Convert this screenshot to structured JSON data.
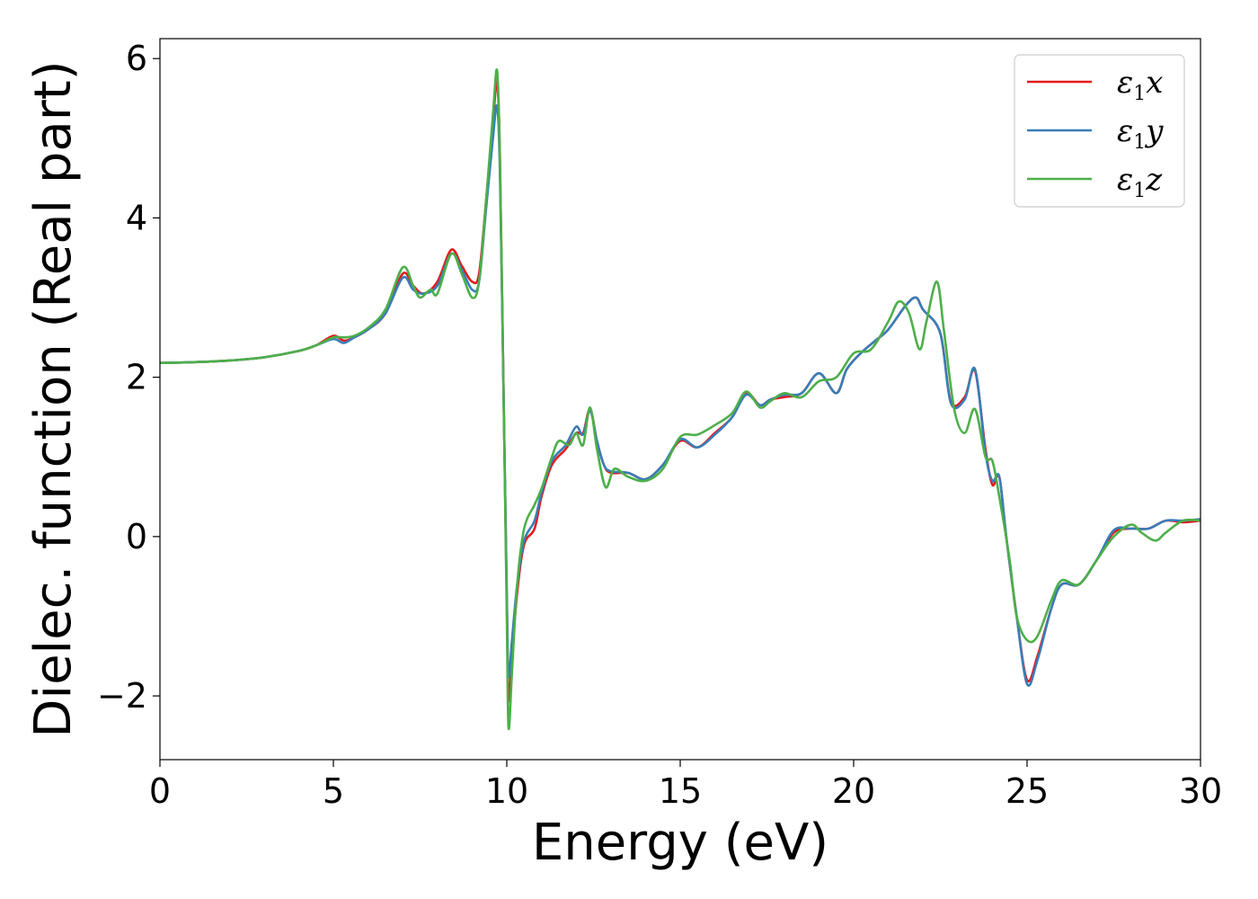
{
  "chart_data": {
    "type": "line",
    "title": "",
    "xlabel": "Energy (eV)",
    "ylabel": "Dielec. function (Real part)",
    "xlim": [
      0,
      30
    ],
    "ylim": [
      -2.8,
      6.25
    ],
    "xticks": [
      0,
      5,
      10,
      15,
      20,
      25,
      30
    ],
    "xtick_labels": [
      "0",
      "5",
      "10",
      "15",
      "20",
      "25",
      "30"
    ],
    "yticks": [
      -2,
      0,
      2,
      4,
      6
    ],
    "ytick_labels": [
      "−2",
      "0",
      "2",
      "4",
      "6"
    ],
    "grid": false,
    "legend_position": "top-right",
    "series": [
      {
        "name": "ε1x",
        "symbol": "ε",
        "subscript": "1",
        "axis": "x",
        "color": "#e41a1c",
        "points": [
          [
            0,
            2.18
          ],
          [
            1,
            2.19
          ],
          [
            2,
            2.21
          ],
          [
            3,
            2.25
          ],
          [
            4,
            2.33
          ],
          [
            4.5,
            2.4
          ],
          [
            5,
            2.52
          ],
          [
            5.3,
            2.46
          ],
          [
            5.6,
            2.5
          ],
          [
            6,
            2.6
          ],
          [
            6.5,
            2.8
          ],
          [
            7,
            3.3
          ],
          [
            7.3,
            3.15
          ],
          [
            7.6,
            3.05
          ],
          [
            8,
            3.2
          ],
          [
            8.4,
            3.6
          ],
          [
            8.7,
            3.4
          ],
          [
            9,
            3.2
          ],
          [
            9.2,
            3.3
          ],
          [
            9.4,
            4.2
          ],
          [
            9.6,
            5.2
          ],
          [
            9.72,
            5.7
          ],
          [
            9.8,
            4.8
          ],
          [
            9.9,
            2.0
          ],
          [
            10.0,
            -0.8
          ],
          [
            10.05,
            -2.05
          ],
          [
            10.15,
            -1.5
          ],
          [
            10.3,
            -0.7
          ],
          [
            10.5,
            -0.1
          ],
          [
            10.8,
            0.1
          ],
          [
            11,
            0.5
          ],
          [
            11.3,
            0.9
          ],
          [
            11.7,
            1.1
          ],
          [
            12,
            1.3
          ],
          [
            12.2,
            1.3
          ],
          [
            12.4,
            1.6
          ],
          [
            12.6,
            1.2
          ],
          [
            12.8,
            0.9
          ],
          [
            13,
            0.8
          ],
          [
            13.5,
            0.8
          ],
          [
            14,
            0.72
          ],
          [
            14.5,
            0.9
          ],
          [
            15,
            1.2
          ],
          [
            15.5,
            1.12
          ],
          [
            16,
            1.3
          ],
          [
            16.5,
            1.5
          ],
          [
            16.9,
            1.8
          ],
          [
            17.3,
            1.65
          ],
          [
            17.6,
            1.72
          ],
          [
            18,
            1.75
          ],
          [
            18.5,
            1.8
          ],
          [
            19,
            2.05
          ],
          [
            19.5,
            1.8
          ],
          [
            19.8,
            2.1
          ],
          [
            20.2,
            2.3
          ],
          [
            20.6,
            2.45
          ],
          [
            21,
            2.6
          ],
          [
            21.5,
            2.9
          ],
          [
            21.8,
            3.0
          ],
          [
            22,
            2.85
          ],
          [
            22.5,
            2.55
          ],
          [
            22.8,
            1.7
          ],
          [
            23.2,
            1.75
          ],
          [
            23.5,
            2.08
          ],
          [
            23.8,
            1.1
          ],
          [
            24,
            0.65
          ],
          [
            24.2,
            0.75
          ],
          [
            24.4,
            0.0
          ],
          [
            24.7,
            -1.0
          ],
          [
            25.0,
            -1.8
          ],
          [
            25.3,
            -1.5
          ],
          [
            25.7,
            -0.9
          ],
          [
            26,
            -0.6
          ],
          [
            26.5,
            -0.6
          ],
          [
            27,
            -0.3
          ],
          [
            27.5,
            0.05
          ],
          [
            28,
            0.1
          ],
          [
            28.5,
            0.1
          ],
          [
            29,
            0.2
          ],
          [
            29.5,
            0.18
          ],
          [
            30,
            0.2
          ]
        ]
      },
      {
        "name": "ε1y",
        "symbol": "ε",
        "subscript": "1",
        "axis": "y",
        "color": "#377eb8",
        "points": [
          [
            0,
            2.18
          ],
          [
            1,
            2.19
          ],
          [
            2,
            2.21
          ],
          [
            3,
            2.25
          ],
          [
            4,
            2.33
          ],
          [
            4.5,
            2.4
          ],
          [
            5,
            2.48
          ],
          [
            5.3,
            2.43
          ],
          [
            5.6,
            2.5
          ],
          [
            6,
            2.6
          ],
          [
            6.5,
            2.8
          ],
          [
            7,
            3.25
          ],
          [
            7.3,
            3.1
          ],
          [
            7.6,
            3.05
          ],
          [
            8,
            3.15
          ],
          [
            8.4,
            3.55
          ],
          [
            8.7,
            3.35
          ],
          [
            9,
            3.1
          ],
          [
            9.2,
            3.2
          ],
          [
            9.4,
            4.1
          ],
          [
            9.6,
            5.0
          ],
          [
            9.72,
            5.4
          ],
          [
            9.8,
            4.6
          ],
          [
            9.9,
            2.0
          ],
          [
            10.0,
            -0.7
          ],
          [
            10.05,
            -1.75
          ],
          [
            10.15,
            -1.3
          ],
          [
            10.3,
            -0.6
          ],
          [
            10.5,
            -0.05
          ],
          [
            10.8,
            0.2
          ],
          [
            11,
            0.55
          ],
          [
            11.3,
            0.95
          ],
          [
            11.7,
            1.15
          ],
          [
            12,
            1.38
          ],
          [
            12.2,
            1.28
          ],
          [
            12.4,
            1.58
          ],
          [
            12.6,
            1.2
          ],
          [
            12.8,
            0.9
          ],
          [
            13,
            0.82
          ],
          [
            13.5,
            0.8
          ],
          [
            14,
            0.72
          ],
          [
            14.5,
            0.9
          ],
          [
            15,
            1.22
          ],
          [
            15.5,
            1.12
          ],
          [
            16,
            1.28
          ],
          [
            16.5,
            1.5
          ],
          [
            16.9,
            1.78
          ],
          [
            17.3,
            1.65
          ],
          [
            17.6,
            1.72
          ],
          [
            18,
            1.78
          ],
          [
            18.5,
            1.8
          ],
          [
            19,
            2.05
          ],
          [
            19.5,
            1.8
          ],
          [
            19.8,
            2.1
          ],
          [
            20.2,
            2.3
          ],
          [
            20.6,
            2.45
          ],
          [
            21,
            2.6
          ],
          [
            21.5,
            2.9
          ],
          [
            21.8,
            3.0
          ],
          [
            22,
            2.85
          ],
          [
            22.5,
            2.55
          ],
          [
            22.8,
            1.68
          ],
          [
            23.2,
            1.72
          ],
          [
            23.5,
            2.1
          ],
          [
            23.8,
            1.05
          ],
          [
            24,
            0.7
          ],
          [
            24.2,
            0.75
          ],
          [
            24.4,
            0.0
          ],
          [
            24.7,
            -1.0
          ],
          [
            25.0,
            -1.85
          ],
          [
            25.3,
            -1.55
          ],
          [
            25.7,
            -0.9
          ],
          [
            26,
            -0.6
          ],
          [
            26.5,
            -0.6
          ],
          [
            27,
            -0.3
          ],
          [
            27.5,
            0.08
          ],
          [
            28,
            0.1
          ],
          [
            28.5,
            0.1
          ],
          [
            29,
            0.2
          ],
          [
            29.5,
            0.2
          ],
          [
            30,
            0.22
          ]
        ]
      },
      {
        "name": "ε1z",
        "symbol": "ε",
        "subscript": "1",
        "axis": "z",
        "color": "#4daf4a",
        "points": [
          [
            0,
            2.18
          ],
          [
            1,
            2.19
          ],
          [
            2,
            2.21
          ],
          [
            3,
            2.25
          ],
          [
            4,
            2.33
          ],
          [
            4.5,
            2.4
          ],
          [
            5,
            2.5
          ],
          [
            5.3,
            2.5
          ],
          [
            5.6,
            2.52
          ],
          [
            6,
            2.62
          ],
          [
            6.5,
            2.85
          ],
          [
            7,
            3.38
          ],
          [
            7.3,
            3.15
          ],
          [
            7.5,
            3.0
          ],
          [
            7.8,
            3.1
          ],
          [
            8,
            3.05
          ],
          [
            8.4,
            3.55
          ],
          [
            8.7,
            3.3
          ],
          [
            9,
            3.0
          ],
          [
            9.2,
            3.2
          ],
          [
            9.4,
            4.2
          ],
          [
            9.6,
            5.3
          ],
          [
            9.72,
            5.85
          ],
          [
            9.8,
            4.8
          ],
          [
            9.9,
            2.0
          ],
          [
            10.0,
            -1.0
          ],
          [
            10.05,
            -2.4
          ],
          [
            10.15,
            -1.7
          ],
          [
            10.3,
            -0.6
          ],
          [
            10.5,
            0.1
          ],
          [
            10.8,
            0.4
          ],
          [
            11,
            0.6
          ],
          [
            11.3,
            1.0
          ],
          [
            11.5,
            1.2
          ],
          [
            11.8,
            1.15
          ],
          [
            12,
            1.3
          ],
          [
            12.2,
            1.15
          ],
          [
            12.4,
            1.62
          ],
          [
            12.6,
            1.1
          ],
          [
            12.85,
            0.62
          ],
          [
            13.1,
            0.85
          ],
          [
            13.5,
            0.75
          ],
          [
            14,
            0.7
          ],
          [
            14.5,
            0.85
          ],
          [
            15,
            1.25
          ],
          [
            15.5,
            1.28
          ],
          [
            16,
            1.4
          ],
          [
            16.5,
            1.55
          ],
          [
            16.9,
            1.82
          ],
          [
            17.3,
            1.62
          ],
          [
            17.6,
            1.7
          ],
          [
            18,
            1.8
          ],
          [
            18.5,
            1.75
          ],
          [
            19,
            1.95
          ],
          [
            19.5,
            2.0
          ],
          [
            20,
            2.3
          ],
          [
            20.5,
            2.35
          ],
          [
            21,
            2.7
          ],
          [
            21.3,
            2.95
          ],
          [
            21.6,
            2.8
          ],
          [
            21.9,
            2.35
          ],
          [
            22.1,
            2.7
          ],
          [
            22.4,
            3.2
          ],
          [
            22.6,
            2.6
          ],
          [
            22.9,
            1.6
          ],
          [
            23.2,
            1.3
          ],
          [
            23.5,
            1.6
          ],
          [
            23.8,
            1.0
          ],
          [
            24,
            0.95
          ],
          [
            24.2,
            0.5
          ],
          [
            24.5,
            -0.3
          ],
          [
            24.7,
            -1.0
          ],
          [
            25.0,
            -1.3
          ],
          [
            25.3,
            -1.25
          ],
          [
            25.7,
            -0.8
          ],
          [
            26,
            -0.55
          ],
          [
            26.5,
            -0.6
          ],
          [
            27,
            -0.3
          ],
          [
            27.5,
            0.0
          ],
          [
            28,
            0.15
          ],
          [
            28.3,
            0.05
          ],
          [
            28.7,
            -0.05
          ],
          [
            29,
            0.05
          ],
          [
            29.5,
            0.2
          ],
          [
            30,
            0.2
          ]
        ]
      }
    ]
  }
}
